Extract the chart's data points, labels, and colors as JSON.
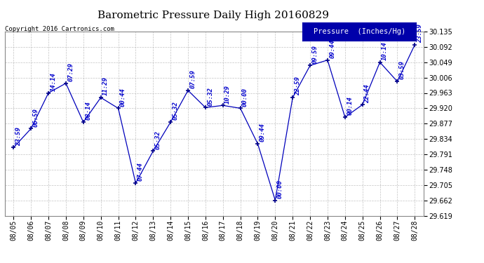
{
  "title": "Barometric Pressure Daily High 20160829",
  "copyright": "Copyright 2016 Cartronics.com",
  "legend_label": "Pressure  (Inches/Hg)",
  "dates": [
    "08/05",
    "08/06",
    "08/07",
    "08/08",
    "08/09",
    "08/10",
    "08/11",
    "08/12",
    "08/13",
    "08/14",
    "08/15",
    "08/16",
    "08/17",
    "08/18",
    "08/19",
    "08/20",
    "08/21",
    "08/22",
    "08/23",
    "08/24",
    "08/25",
    "08/26",
    "08/27",
    "08/28"
  ],
  "values": [
    29.81,
    29.863,
    29.963,
    29.99,
    29.881,
    29.95,
    29.92,
    29.71,
    29.8,
    29.881,
    29.97,
    29.922,
    29.928,
    29.92,
    29.82,
    29.662,
    29.95,
    30.04,
    30.055,
    29.895,
    29.93,
    30.049,
    29.995,
    30.098
  ],
  "point_labels": [
    "23:59",
    "06:59",
    "14:14",
    "07:29",
    "08:14",
    "11:29",
    "00:44",
    "07:44",
    "05:32",
    "05:32",
    "07:59",
    "05:32",
    "10:29",
    "00:00",
    "09:44",
    "00:00",
    "22:59",
    "09:59",
    "09:44",
    "00:14",
    "22:44",
    "10:14",
    "03:59",
    "23:59"
  ],
  "ylim": [
    29.619,
    30.135
  ],
  "yticks": [
    29.619,
    29.662,
    29.705,
    29.748,
    29.791,
    29.834,
    29.877,
    29.92,
    29.963,
    30.006,
    30.049,
    30.092,
    30.135
  ],
  "line_color": "#0000bb",
  "marker_color": "#000088",
  "label_color": "#0000cc",
  "background_color": "#ffffff",
  "plot_background": "#ffffff",
  "grid_color": "#aaaaaa",
  "title_fontsize": 11,
  "tick_fontsize": 7,
  "label_fontsize": 6.5,
  "legend_bg": "#0000aa",
  "legend_fg": "#ffffff"
}
